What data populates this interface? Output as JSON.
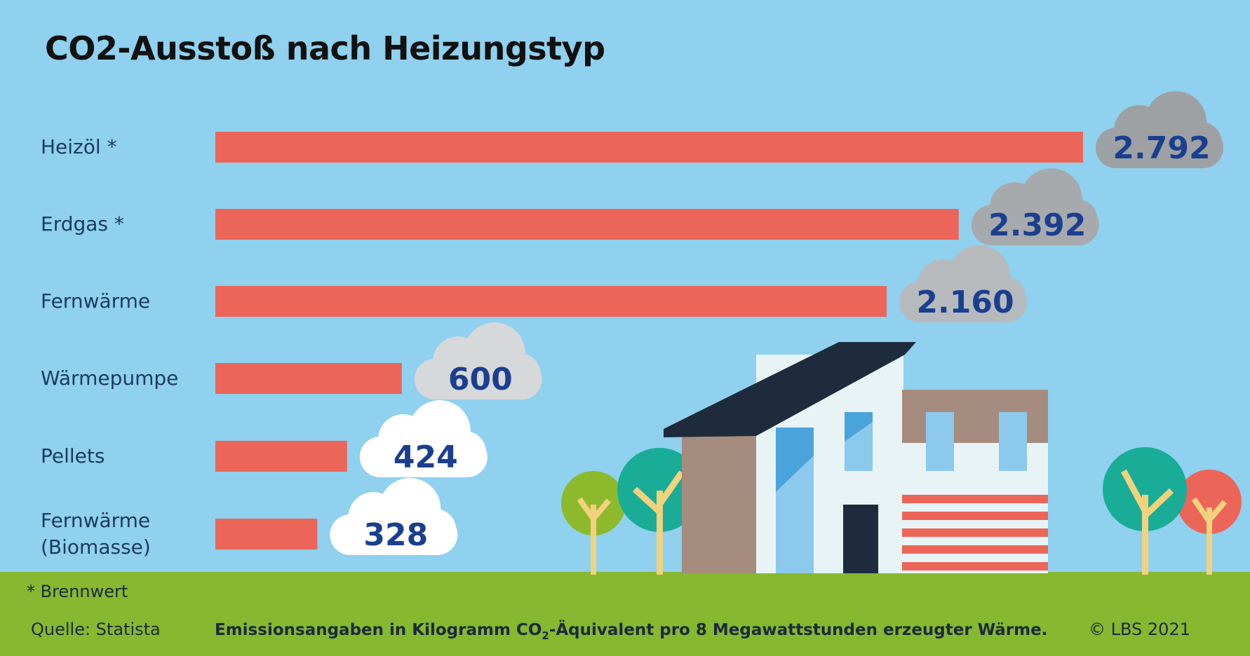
{
  "title": "CO2-Ausstoß nach Heizungstyp",
  "chart_data": {
    "type": "bar",
    "orientation": "horizontal",
    "categories": [
      "Heizöl *",
      "Erdgas *",
      "Fernwärme",
      "Wärmepumpe",
      "Pellets",
      "Fernwärme (Biomasse)"
    ],
    "values": [
      2792,
      2392,
      2160,
      600,
      424,
      328
    ],
    "value_labels": [
      "2.792",
      "2.392",
      "2.160",
      "600",
      "424",
      "328"
    ],
    "unit_note": "Emissionsangaben in Kilogramm CO2-Äquivalent pro 8 Megawattstunden erzeugter Wärme.",
    "xlim": [
      0,
      2792
    ],
    "grid": false
  },
  "category_lines": [
    [
      "Heizöl *"
    ],
    [
      "Erdgas *"
    ],
    [
      "Fernwärme"
    ],
    [
      "Wärmepumpe"
    ],
    [
      "Pellets"
    ],
    [
      "Fernwärme",
      "(Biomasse)"
    ]
  ],
  "footer": {
    "note": "* Brennwert",
    "source": "Quelle: Statista",
    "unit_prefix": "Emissionsangaben in Kilogramm CO",
    "unit_sub": "2",
    "unit_suffix": "-Äquivalent pro 8 Megawattstunden erzeugter Wärme.",
    "copyright": "© LBS 2021"
  },
  "colors": {
    "sky": "#8fd1ee",
    "bar": "#ec6559",
    "value_text": "#1b3f8f",
    "cloud_dark": "#9ea1a4",
    "cloud_mid": "#b7babd",
    "cloud_light": "#d6d8da",
    "cloud_white": "#ffffff",
    "ground": "#86b830",
    "label_text": "#1c3a63"
  },
  "cloud_fills": [
    "#9ea1a4",
    "#a7aaad",
    "#b7babd",
    "#d6d8da",
    "#ffffff",
    "#ffffff"
  ],
  "illustration": {
    "description_icons": [
      "house-icon",
      "tree-icon"
    ]
  }
}
